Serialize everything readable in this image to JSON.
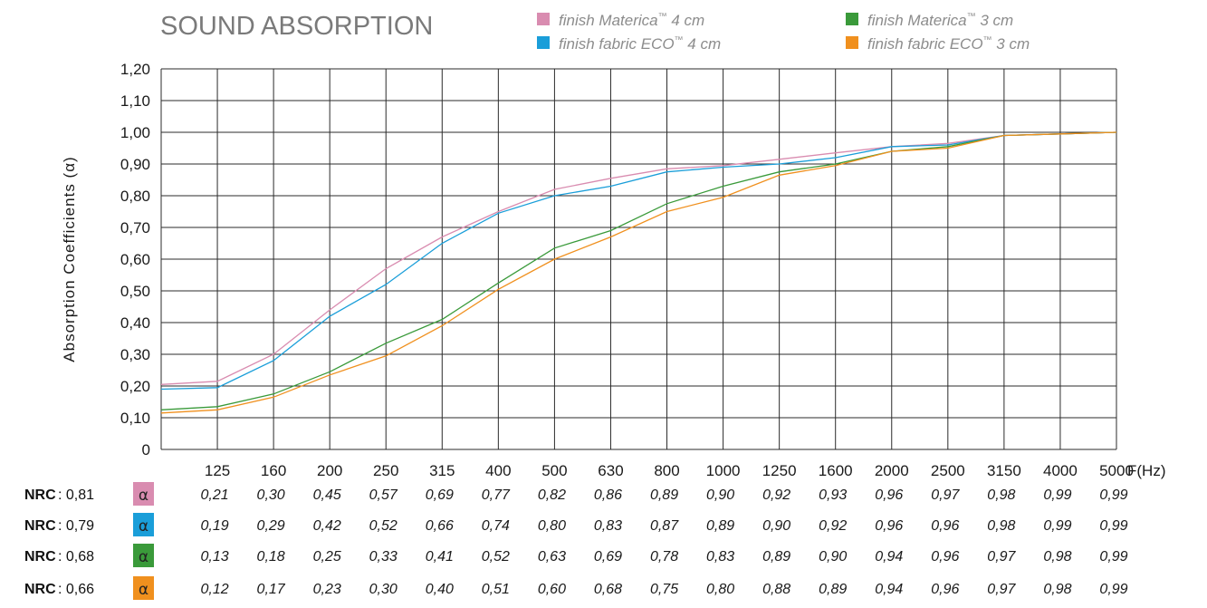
{
  "chart_data": {
    "type": "line",
    "title": "SOUND ABSORPTION",
    "ylabel": "Absorption Coefficients (α)",
    "xunit": "F(Hz)",
    "ylim": [
      0,
      1.2
    ],
    "y_ticks": [
      "0",
      "0,10",
      "0,20",
      "0,30",
      "0,40",
      "0,50",
      "0,60",
      "0,70",
      "0,80",
      "0,90",
      "1,00",
      "1,10",
      "1,20"
    ],
    "categories": [
      "125",
      "160",
      "200",
      "250",
      "315",
      "400",
      "500",
      "630",
      "800",
      "1000",
      "1250",
      "1600",
      "2000",
      "2500",
      "3150",
      "4000",
      "5000"
    ],
    "grid": true,
    "legend_position": "top",
    "series": [
      {
        "legend_prefix": "finish Materica",
        "legend_tm": "™",
        "legend_suffix": " 4 cm",
        "color": "#d98cb0",
        "swatch_color": "#d98cb0",
        "nrc_label": "NRC",
        "nrc": ": 0,81",
        "alpha": "α",
        "curve": [
          0.205,
          0.215,
          0.3,
          0.44,
          0.57,
          0.67,
          0.75,
          0.82,
          0.855,
          0.885,
          0.895,
          0.915,
          0.935,
          0.955,
          0.965,
          0.99,
          0.995,
          1.0
        ],
        "table_values": [
          "0,21",
          "0,30",
          "0,45",
          "0,57",
          "0,69",
          "0,77",
          "0,82",
          "0,86",
          "0,89",
          "0,90",
          "0,92",
          "0,93",
          "0,96",
          "0,97",
          "0,98",
          "0,99",
          "0,99"
        ]
      },
      {
        "legend_prefix": "finish fabric ECO",
        "legend_tm": "™",
        "legend_suffix": " 4 cm",
        "color": "#1a9ed9",
        "swatch_color": "#1a9ed9",
        "nrc_label": "NRC",
        "nrc": ": 0,79",
        "alpha": "α",
        "curve": [
          0.19,
          0.195,
          0.28,
          0.42,
          0.52,
          0.65,
          0.745,
          0.8,
          0.83,
          0.875,
          0.89,
          0.9,
          0.92,
          0.955,
          0.96,
          0.99,
          0.995,
          1.0
        ],
        "table_values": [
          "0,19",
          "0,29",
          "0,42",
          "0,52",
          "0,66",
          "0,74",
          "0,80",
          "0,83",
          "0,87",
          "0,89",
          "0,90",
          "0,92",
          "0,96",
          "0,96",
          "0,98",
          "0,99",
          "0,99"
        ]
      },
      {
        "legend_prefix": "finish Materica",
        "legend_tm": "™",
        "legend_suffix": " 3 cm",
        "color": "#3a9a3a",
        "swatch_color": "#3a9a3a",
        "nrc_label": "NRC",
        "nrc": ": 0,68",
        "alpha": "α",
        "curve": [
          0.125,
          0.135,
          0.175,
          0.245,
          0.335,
          0.41,
          0.525,
          0.635,
          0.69,
          0.775,
          0.83,
          0.875,
          0.9,
          0.94,
          0.955,
          0.99,
          0.995,
          1.0
        ],
        "table_values": [
          "0,13",
          "0,18",
          "0,25",
          "0,33",
          "0,41",
          "0,52",
          "0,63",
          "0,69",
          "0,78",
          "0,83",
          "0,89",
          "0,90",
          "0,94",
          "0,96",
          "0,97",
          "0,98",
          "0,99"
        ]
      },
      {
        "legend_prefix": "finish fabric ECO",
        "legend_tm": "™",
        "legend_suffix": " 3 cm",
        "color": "#f0901e",
        "swatch_color": "#f0901e",
        "nrc_label": "NRC",
        "nrc": ": 0,66",
        "alpha": "α",
        "curve": [
          0.115,
          0.125,
          0.165,
          0.235,
          0.295,
          0.39,
          0.505,
          0.6,
          0.67,
          0.75,
          0.795,
          0.865,
          0.895,
          0.94,
          0.95,
          0.99,
          0.995,
          1.0
        ],
        "table_values": [
          "0,12",
          "0,17",
          "0,23",
          "0,30",
          "0,40",
          "0,51",
          "0,60",
          "0,68",
          "0,75",
          "0,80",
          "0,88",
          "0,89",
          "0,94",
          "0,96",
          "0,97",
          "0,98",
          "0,99"
        ]
      }
    ]
  }
}
